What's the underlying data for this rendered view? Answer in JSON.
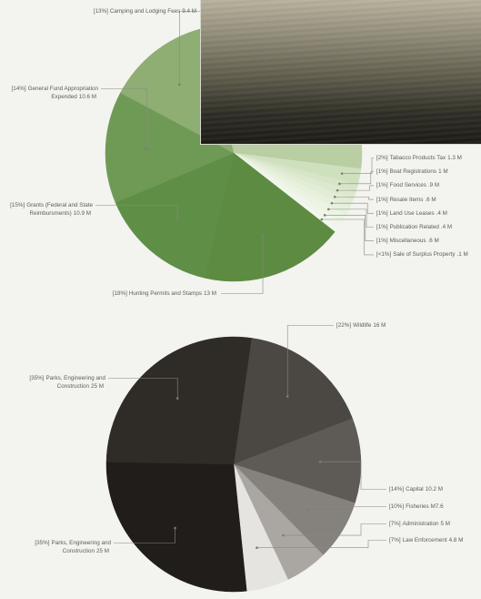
{
  "chart_data": [
    {
      "type": "pie",
      "categories": [
        null,
        "Tabacco Products Tax",
        "Boat Registrations",
        "Food Services",
        "Resale Items",
        "Land Use Leases",
        "Publication Related",
        "Miscellaneous",
        "Sale of Surplus Property",
        "Hunting Permits and Stamps",
        "Grants (Federal and State Reimbursments)",
        "General Fund Appropriation Expended",
        "Camping and Lodging Fees"
      ],
      "values": [
        31,
        2,
        1,
        1,
        1,
        1,
        1,
        1,
        0.5,
        18,
        15,
        14,
        13
      ],
      "value_labels": [
        null,
        "[2%]",
        "[1%]",
        "[1%]",
        "[1%]",
        "[1%]",
        "[1%]",
        "[1%]",
        "[<1%]",
        "[18%]",
        "[15%]",
        "[14%]",
        "[13%]"
      ],
      "amounts": [
        null,
        "1.3 M",
        "1 M",
        ".9 M",
        ".6 M",
        ".4 M",
        ".4 M",
        ".6 M",
        ".1 M",
        "13 M",
        "10.9 M",
        "10.6 M",
        "9.4 M"
      ],
      "colors": [
        "#b9cea2",
        "#cfe0bf",
        "#d6e5c8",
        "#dce9cf",
        "#e2edd6",
        "#e7f0dd",
        "#ebf3e3",
        "#eff6e9",
        "#f3f8ee",
        "#5d8b42",
        "#5f8f47",
        "#6e9a56",
        "#8eae74"
      ]
    },
    {
      "type": "pie",
      "categories": [
        "Wildlife",
        "Capital",
        "Fisheries",
        "Administration",
        "Law Enforcement",
        "Parks, Engineering and Construction",
        "Parks, Engineering and Construction"
      ],
      "values": [
        22,
        14,
        10,
        7,
        7,
        35,
        35
      ],
      "value_labels": [
        "[22%]",
        "[14%]",
        "[10%]",
        "[7%]",
        "[7%]",
        "[35%]",
        "[35%]"
      ],
      "amounts": [
        "16 M",
        "10.2 M",
        "M7.6",
        "5 M",
        "4.8 M",
        "25 M",
        "25 M"
      ],
      "colors": [
        "#4b4743",
        "#5e5a56",
        "#85817c",
        "#aaa6a1",
        "#e6e4e0",
        "#201d1a",
        "#2f2c28"
      ]
    }
  ]
}
